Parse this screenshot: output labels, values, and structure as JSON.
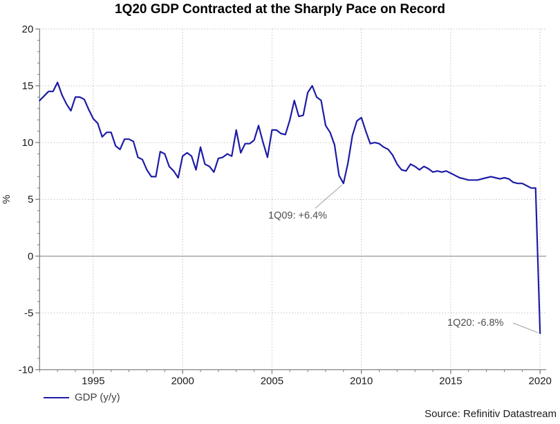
{
  "chart_data": {
    "type": "line",
    "title": "1Q20 GDP Contracted at the Sharply Pace on Record",
    "xlabel": "",
    "ylabel": "%",
    "x_start": "1992Q1",
    "x_end": "2020Q1",
    "frequency": "quarterly",
    "x_tick_years": [
      1995,
      2000,
      2005,
      2010,
      2015,
      2020
    ],
    "x_minor_tick_step_years": 1,
    "x_first_year": 1992,
    "x_last_year": 2020,
    "ylim": [
      -10,
      20
    ],
    "y_major_ticks": [
      20,
      15,
      10,
      5,
      0,
      -5,
      -10
    ],
    "y_minor_tick_step": 1,
    "grid": {
      "horizontal_dotted_at": [
        20,
        15,
        10,
        5,
        -5
      ],
      "vertical_dotted_at_year_ticks": true,
      "zero_line_solid": true
    },
    "legend_position": "bottom-left",
    "series": [
      {
        "name": "GDP (y/y)",
        "color": "#1d1ba6",
        "values": [
          13.7,
          14.1,
          14.5,
          14.5,
          15.3,
          14.2,
          13.4,
          12.8,
          14.0,
          14.0,
          13.8,
          12.9,
          12.1,
          11.7,
          10.5,
          10.9,
          10.9,
          9.7,
          9.4,
          10.3,
          10.3,
          10.1,
          8.7,
          8.5,
          7.6,
          7.0,
          7.0,
          9.2,
          9.0,
          7.9,
          7.5,
          6.9,
          8.8,
          9.1,
          8.8,
          7.6,
          9.6,
          8.1,
          7.9,
          7.4,
          8.6,
          8.7,
          9.0,
          8.8,
          11.1,
          9.1,
          9.9,
          9.9,
          10.2,
          11.5,
          10.0,
          8.7,
          11.1,
          11.1,
          10.8,
          10.7,
          12.0,
          13.7,
          12.3,
          12.4,
          14.4,
          15.0,
          14.0,
          13.7,
          11.5,
          10.9,
          9.8,
          7.1,
          6.4,
          8.2,
          10.6,
          11.9,
          12.2,
          11.0,
          9.9,
          10.0,
          9.9,
          9.6,
          9.4,
          8.9,
          8.1,
          7.6,
          7.5,
          8.1,
          7.9,
          7.6,
          7.9,
          7.7,
          7.4,
          7.5,
          7.4,
          7.5,
          7.3,
          7.1,
          6.9,
          6.8,
          6.7,
          6.7,
          6.7,
          6.8,
          6.9,
          7.0,
          6.9,
          6.8,
          6.9,
          6.8,
          6.5,
          6.4,
          6.4,
          6.2,
          6.0,
          6.0,
          -6.8
        ]
      }
    ],
    "annotations": [
      {
        "text": "1Q09: +6.4%",
        "quarter": "2009Q1",
        "index": 68,
        "value": 6.4
      },
      {
        "text": "1Q20: -6.8%",
        "quarter": "2020Q1",
        "index": 112,
        "value": -6.8
      }
    ]
  },
  "legend": {
    "label": "GDP (y/y)"
  },
  "source": {
    "text": "Source: Refinitiv Datastream"
  },
  "colors": {
    "line": "#1d1ba6",
    "axis": "#808080",
    "zero_line": "#8c8c8c",
    "grid_dotted": "#c9baba",
    "tick_label": "#1a1a1a",
    "annotation_text": "#4d4d4d",
    "leader_line": "#a0a0a0",
    "title": "#000000"
  }
}
